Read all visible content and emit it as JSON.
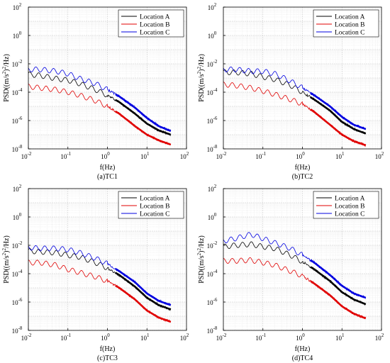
{
  "figure": {
    "panels": [
      {
        "caption": "(a)TC1",
        "ylabel": "PSD((m/s²)²/Hz)",
        "ylabel_base": "PSD((m/s",
        "ylabel_sup1": "2",
        "ylabel_mid": ")",
        "ylabel_sup2": "2",
        "ylabel_end": "/Hz)",
        "xlabel": "f(Hz)"
      },
      {
        "caption": "(b)TC2",
        "ylabel": "PSD((m/s²)²/Hz)",
        "ylabel_base": "PSD((m/s",
        "ylabel_sup1": "2",
        "ylabel_mid": ")",
        "ylabel_sup2": "2",
        "ylabel_end": "/Hz)",
        "xlabel": "f(Hz)"
      },
      {
        "caption": "(c)TC3",
        "ylabel": "PSD((m/s²)²/Hz)",
        "ylabel_base": "PSD((m/s",
        "ylabel_sup1": "2",
        "ylabel_mid": ")",
        "ylabel_sup2": "2",
        "ylabel_end": "/Hz)",
        "xlabel": "f(Hz)"
      },
      {
        "caption": "(d)TC4",
        "ylabel": "PSD((m/s²)²/Hz)",
        "ylabel_base": "PSD((m/s",
        "ylabel_sup1": "2",
        "ylabel_mid": ")",
        "ylabel_sup2": "2",
        "ylabel_end": "/Hz)",
        "xlabel": "f(Hz)"
      }
    ]
  },
  "chart_data": [
    {
      "type": "line",
      "title": "(a)TC1",
      "xlabel": "f(Hz)",
      "ylabel": "PSD((m/s²)²/Hz)",
      "xscale": "log",
      "yscale": "log",
      "xlim": [
        0.01,
        100
      ],
      "ylim": [
        1e-08,
        100
      ],
      "xticks": [
        "10^-2",
        "10^-1",
        "10^0",
        "10^1",
        "10^2"
      ],
      "yticks": [
        "10^-8",
        "10^-6",
        "10^-4",
        "10^-2",
        "10^0",
        "10^2"
      ],
      "grid": true,
      "legend_position": "top-right",
      "series": [
        {
          "name": "Location A",
          "color": "#000000",
          "x": [
            0.01,
            0.02,
            0.05,
            0.1,
            0.2,
            0.5,
            1,
            2,
            5,
            10,
            20,
            40
          ],
          "y": [
            0.0018,
            0.0015,
            0.0009,
            0.0007,
            0.0004,
            0.00015,
            6e-05,
            2e-05,
            3e-06,
            6e-07,
            2e-07,
            1e-07
          ]
        },
        {
          "name": "Location B",
          "color": "#e00000",
          "x": [
            0.01,
            0.02,
            0.05,
            0.1,
            0.2,
            0.5,
            1,
            2,
            5,
            10,
            20,
            40
          ],
          "y": [
            0.00025,
            0.0002,
            0.00015,
            0.0001,
            6e-05,
            2.5e-05,
            1e-05,
            3e-06,
            4e-07,
            1e-07,
            4e-08,
            2e-08
          ]
        },
        {
          "name": "Location C",
          "color": "#0000e0",
          "x": [
            0.01,
            0.02,
            0.05,
            0.1,
            0.2,
            0.5,
            1,
            2,
            5,
            10,
            20,
            40
          ],
          "y": [
            0.004,
            0.004,
            0.003,
            0.002,
            0.0009,
            0.0004,
            0.00015,
            5e-05,
            8e-06,
            1.5e-06,
            4e-07,
            1.8e-07
          ]
        }
      ]
    },
    {
      "type": "line",
      "title": "(b)TC2",
      "xlabel": "f(Hz)",
      "ylabel": "PSD((m/s²)²/Hz)",
      "xscale": "log",
      "yscale": "log",
      "xlim": [
        0.01,
        100
      ],
      "ylim": [
        1e-08,
        100
      ],
      "xticks": [
        "10^-2",
        "10^-1",
        "10^0",
        "10^1",
        "10^2"
      ],
      "yticks": [
        "10^-8",
        "10^-6",
        "10^-4",
        "10^-2",
        "10^0",
        "10^2"
      ],
      "grid": true,
      "legend_position": "top-right",
      "series": [
        {
          "name": "Location A",
          "color": "#000000",
          "x": [
            0.01,
            0.02,
            0.05,
            0.1,
            0.2,
            0.5,
            1,
            2,
            5,
            10,
            20,
            40
          ],
          "y": [
            0.0025,
            0.0025,
            0.002,
            0.0012,
            0.0008,
            0.0003,
            0.0001,
            3e-05,
            5e-06,
            8e-07,
            2.5e-07,
            1.2e-07
          ]
        },
        {
          "name": "Location B",
          "color": "#e00000",
          "x": [
            0.01,
            0.02,
            0.05,
            0.1,
            0.2,
            0.5,
            1,
            2,
            5,
            10,
            20,
            40
          ],
          "y": [
            0.00035,
            0.0003,
            0.0002,
            0.00012,
            7e-05,
            3e-05,
            1.5e-05,
            4e-06,
            5e-07,
            1e-07,
            3.5e-08,
            1.8e-08
          ]
        },
        {
          "name": "Location C",
          "color": "#0000e0",
          "x": [
            0.01,
            0.02,
            0.05,
            0.1,
            0.2,
            0.5,
            1,
            2,
            5,
            10,
            20,
            40
          ],
          "y": [
            0.004,
            0.004,
            0.003,
            0.003,
            0.002,
            0.0006,
            0.0002,
            6e-05,
            1e-05,
            1.8e-06,
            5e-07,
            2.5e-07
          ]
        }
      ]
    },
    {
      "type": "line",
      "title": "(c)TC3",
      "xlabel": "f(Hz)",
      "ylabel": "PSD((m/s²)²/Hz)",
      "xscale": "log",
      "yscale": "log",
      "xlim": [
        0.01,
        100
      ],
      "ylim": [
        1e-08,
        100
      ],
      "xticks": [
        "10^-2",
        "10^-1",
        "10^0",
        "10^1",
        "10^2"
      ],
      "yticks": [
        "10^-8",
        "10^-6",
        "10^-4",
        "10^-2",
        "10^0",
        "10^2"
      ],
      "grid": true,
      "legend_position": "top-right",
      "series": [
        {
          "name": "Location A",
          "color": "#000000",
          "x": [
            0.01,
            0.02,
            0.05,
            0.1,
            0.2,
            0.5,
            1,
            2,
            5,
            10,
            20,
            40
          ],
          "y": [
            0.004,
            0.0035,
            0.003,
            0.002,
            0.0015,
            0.0006,
            0.00025,
            8e-05,
            1.2e-05,
            2e-06,
            6e-07,
            3e-07
          ]
        },
        {
          "name": "Location B",
          "color": "#e00000",
          "x": [
            0.01,
            0.02,
            0.05,
            0.1,
            0.2,
            0.5,
            1,
            2,
            5,
            10,
            20,
            40
          ],
          "y": [
            0.0006,
            0.0006,
            0.0004,
            0.0002,
            0.00012,
            6e-05,
            3e-05,
            1e-05,
            1.5e-06,
            2.5e-07,
            8e-08,
            4e-08
          ]
        },
        {
          "name": "Location C",
          "color": "#0000e0",
          "x": [
            0.01,
            0.02,
            0.05,
            0.1,
            0.2,
            0.5,
            1,
            2,
            5,
            10,
            20,
            40
          ],
          "y": [
            0.007,
            0.006,
            0.006,
            0.005,
            0.003,
            0.0012,
            0.0005,
            0.00015,
            2.5e-05,
            4e-06,
            1.2e-06,
            6e-07
          ]
        }
      ]
    },
    {
      "type": "line",
      "title": "(d)TC4",
      "xlabel": "f(Hz)",
      "ylabel": "PSD((m/s²)²/Hz)",
      "xscale": "log",
      "yscale": "log",
      "xlim": [
        0.01,
        100
      ],
      "ylim": [
        1e-08,
        100
      ],
      "xticks": [
        "10^-2",
        "10^-1",
        "10^0",
        "10^1",
        "10^2"
      ],
      "yticks": [
        "10^-8",
        "10^-6",
        "10^-4",
        "10^-2",
        "10^0",
        "10^2"
      ],
      "grid": true,
      "legend_position": "top-right",
      "series": [
        {
          "name": "Location A",
          "color": "#000000",
          "x": [
            0.01,
            0.02,
            0.05,
            0.1,
            0.2,
            0.5,
            1,
            2,
            5,
            10,
            20,
            40
          ],
          "y": [
            0.008,
            0.01,
            0.012,
            0.008,
            0.006,
            0.002,
            0.0007,
            0.0002,
            3e-05,
            5e-06,
            1.5e-06,
            7e-07
          ]
        },
        {
          "name": "Location B",
          "color": "#e00000",
          "x": [
            0.01,
            0.02,
            0.05,
            0.1,
            0.2,
            0.5,
            1,
            2,
            5,
            10,
            20,
            40
          ],
          "y": [
            0.0008,
            0.0008,
            0.0009,
            0.0006,
            0.0004,
            0.00015,
            7e-05,
            2e-05,
            3e-06,
            5e-07,
            1.5e-07,
            7e-08
          ]
        },
        {
          "name": "Location C",
          "color": "#0000e0",
          "x": [
            0.01,
            0.02,
            0.05,
            0.1,
            0.2,
            0.5,
            1,
            2,
            5,
            10,
            20,
            40
          ],
          "y": [
            0.02,
            0.03,
            0.06,
            0.03,
            0.015,
            0.006,
            0.002,
            0.0006,
            8e-05,
            1.4e-05,
            4e-06,
            2e-06
          ]
        }
      ]
    }
  ]
}
